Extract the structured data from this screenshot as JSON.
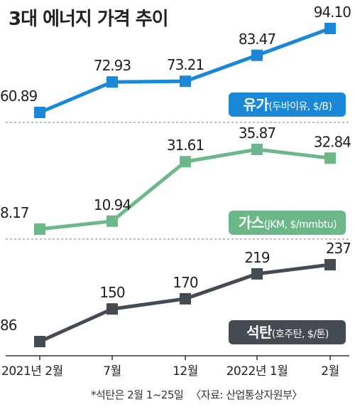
{
  "title": "3대 에너지 가격 추이",
  "footnote": "*석탄은 2월 1~25일",
  "source": "〈자료: 산업통상자원부〉",
  "chart_data": {
    "type": "line",
    "categories": [
      "2021년 2월",
      "7월",
      "12월",
      "2022년 1월",
      "2월"
    ],
    "series": [
      {
        "key": "oil",
        "name": "유가",
        "unit": "(두바이유, $/B)",
        "color": "#1a88d6",
        "values": [
          60.89,
          72.93,
          73.21,
          83.47,
          94.1
        ],
        "labels": [
          "60.89",
          "72.93",
          "73.21",
          "83.47",
          "94.10"
        ]
      },
      {
        "key": "gas",
        "name": "가스",
        "unit": "(JKM, $/mmbtu)",
        "color": "#6cb88a",
        "values": [
          8.17,
          10.94,
          31.61,
          35.87,
          32.84
        ],
        "labels": [
          "8.17",
          "10.94",
          "31.61",
          "35.87",
          "32.84"
        ]
      },
      {
        "key": "coal",
        "name": "석탄",
        "unit": "(호주탄, $/톤)",
        "color": "#454b52",
        "values": [
          86,
          150,
          170,
          219,
          237
        ],
        "labels": [
          "86",
          "150",
          "170",
          "219",
          "237"
        ]
      }
    ]
  }
}
